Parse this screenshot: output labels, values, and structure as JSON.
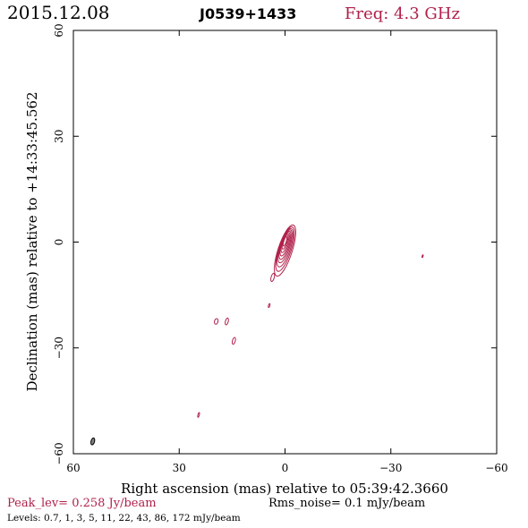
{
  "header": {
    "date": "2015.12.08",
    "source": "J0539+1433",
    "frequency": "Freq: 4.3 GHz"
  },
  "footer": {
    "peak": "Peak_lev=  0.258 Jy/beam",
    "rms": "Rms_noise=  0.1 mJy/beam",
    "levels": "Levels: 0.7,    1,    3,    5,   11,   22,   43,   86, 172 mJy/beam"
  },
  "colors": {
    "contour": "#b0204a",
    "beam": "#808080",
    "axes": "#000000"
  },
  "chart_data": {
    "type": "contour",
    "xlabel": "Right ascension (mas) relative to 05:39:42.3660",
    "ylabel": "Declination (mas) relative to +14:33:45.562",
    "xlim": [
      60,
      -60
    ],
    "ylim": [
      -60,
      60
    ],
    "x_ticks": [
      "60",
      "30",
      "0",
      "−30",
      "−60"
    ],
    "y_ticks": [
      "−60",
      "−30",
      "0",
      "30",
      "60"
    ],
    "x_tick_values": [
      60,
      30,
      0,
      -30,
      -60
    ],
    "y_tick_values": [
      -60,
      -30,
      0,
      30,
      60
    ],
    "contour_levels_mJy": [
      0.7,
      1,
      3,
      5,
      11,
      22,
      43,
      86,
      172
    ],
    "core": {
      "x": 0,
      "y": 0,
      "levels_shown": 9,
      "ring_widths": [
        4.0,
        3.5,
        3.1,
        2.7,
        2.3,
        1.9,
        1.5,
        1.1,
        0.7
      ],
      "ring_heights": [
        15.2,
        13.2,
        11.4,
        9.8,
        8.4,
        7.0,
        5.6,
        4.2,
        2.8
      ],
      "ring_offsets_y": [
        -2.4,
        -2.0,
        -1.6,
        -1.2,
        -0.9,
        -0.6,
        -0.3,
        0.0,
        0.2
      ],
      "pa_deg": 18
    },
    "components": [
      {
        "x": 3.5,
        "y": -10.0,
        "w": 0.9,
        "h": 2.4,
        "pa_deg": 15
      },
      {
        "x": 4.5,
        "y": -18.0,
        "w": 0.4,
        "h": 1.1,
        "pa_deg": 15
      },
      {
        "x": 19.5,
        "y": -22.5,
        "w": 1.0,
        "h": 1.6,
        "pa_deg": 15
      },
      {
        "x": 16.5,
        "y": -22.5,
        "w": 0.8,
        "h": 2.0,
        "pa_deg": 15
      },
      {
        "x": 14.5,
        "y": -28.0,
        "w": 0.8,
        "h": 2.0,
        "pa_deg": 15
      },
      {
        "x": 24.5,
        "y": -49.0,
        "w": 0.4,
        "h": 1.4,
        "pa_deg": 15
      },
      {
        "x": -39.0,
        "y": -4.0,
        "w": 0.3,
        "h": 0.8,
        "pa_deg": 15
      }
    ],
    "beam": {
      "x": 54.5,
      "y": -56.5,
      "w": 1.0,
      "h": 2.0,
      "pa_deg": 15
    }
  }
}
